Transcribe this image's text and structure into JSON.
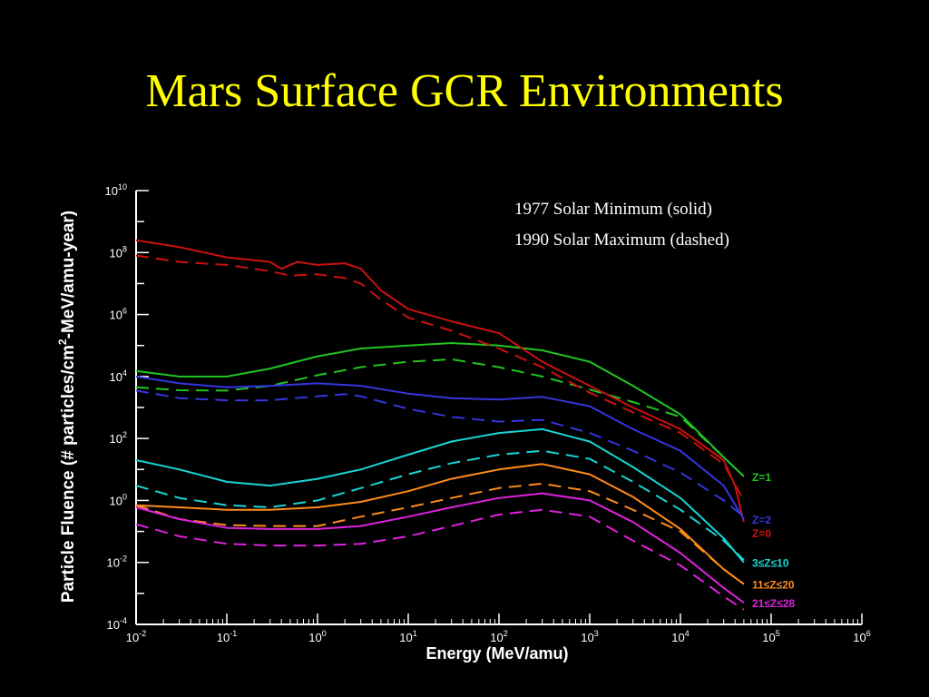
{
  "slide": {
    "title": "Mars Surface GCR Environments"
  },
  "chart_data": {
    "type": "line",
    "xlabel": "Energy (MeV/amu)",
    "ylabel": "Particle Fluence (# particles/cm²-MeV/amu-year)",
    "ylabel_parts": {
      "before": "Particle Fluence (# particles/cm",
      "sup": "2",
      "after": "-MeV/amu-year)"
    },
    "x_scale": "log",
    "y_scale": "log",
    "xlim": [
      0.01,
      1000000
    ],
    "ylim": [
      0.0001,
      10000000000
    ],
    "x_ticks": [
      {
        "value": 0.01,
        "base": "10",
        "exp": "-2"
      },
      {
        "value": 0.1,
        "base": "10",
        "exp": "-1"
      },
      {
        "value": 1,
        "base": "10",
        "exp": "0"
      },
      {
        "value": 10,
        "base": "10",
        "exp": "1"
      },
      {
        "value": 100,
        "base": "10",
        "exp": "2"
      },
      {
        "value": 1000,
        "base": "10",
        "exp": "3"
      },
      {
        "value": 10000,
        "base": "10",
        "exp": "4"
      },
      {
        "value": 100000,
        "base": "10",
        "exp": "5"
      },
      {
        "value": 1000000,
        "base": "10",
        "exp": "6"
      }
    ],
    "y_ticks": [
      {
        "value": 0.0001,
        "base": "10",
        "exp": "-4"
      },
      {
        "value": 0.01,
        "base": "10",
        "exp": "-2"
      },
      {
        "value": 1,
        "base": "10",
        "exp": "0"
      },
      {
        "value": 100,
        "base": "10",
        "exp": "2"
      },
      {
        "value": 10000,
        "base": "10",
        "exp": "4"
      },
      {
        "value": 1000000,
        "base": "10",
        "exp": "6"
      },
      {
        "value": 100000000,
        "base": "10",
        "exp": "8"
      },
      {
        "value": 10000000000,
        "base": "10",
        "exp": "10"
      }
    ],
    "grid": false,
    "legend_lines": [
      "1977 Solar Minimum (solid)",
      "1990 Solar Maximum (dashed)"
    ],
    "legend_position": "top-right",
    "series": [
      {
        "name": "Z=1",
        "color": "#22c422",
        "solid": [
          [
            0.01,
            15000
          ],
          [
            0.03,
            10000
          ],
          [
            0.1,
            10000
          ],
          [
            0.3,
            18000
          ],
          [
            1,
            45000
          ],
          [
            3,
            80000
          ],
          [
            10,
            100000
          ],
          [
            30,
            120000
          ],
          [
            100,
            100000
          ],
          [
            300,
            70000
          ],
          [
            1000,
            30000
          ],
          [
            3000,
            5000
          ],
          [
            10000,
            600
          ],
          [
            30000,
            25
          ],
          [
            50000,
            6
          ]
        ],
        "dashed": [
          [
            0.01,
            4500
          ],
          [
            0.03,
            3600
          ],
          [
            0.1,
            3500
          ],
          [
            0.3,
            5000
          ],
          [
            1,
            11000
          ],
          [
            3,
            20000
          ],
          [
            10,
            30000
          ],
          [
            30,
            36000
          ],
          [
            100,
            20000
          ],
          [
            300,
            10000
          ],
          [
            1000,
            3800
          ],
          [
            3000,
            1500
          ],
          [
            10000,
            500
          ],
          [
            30000,
            25
          ],
          [
            50000,
            6
          ]
        ]
      },
      {
        "name": "Z=0",
        "color": "#cc1111",
        "solid": [
          [
            0.01,
            250000000
          ],
          [
            0.03,
            150000000
          ],
          [
            0.1,
            70000000
          ],
          [
            0.3,
            50000000
          ],
          [
            0.4,
            30000000
          ],
          [
            0.6,
            50000000
          ],
          [
            1,
            40000000
          ],
          [
            2,
            45000000
          ],
          [
            3,
            30000000
          ],
          [
            5,
            6000000
          ],
          [
            10,
            1500000
          ],
          [
            30,
            600000
          ],
          [
            100,
            250000
          ],
          [
            300,
            30000
          ],
          [
            1000,
            5000
          ],
          [
            3000,
            1000
          ],
          [
            10000,
            200
          ],
          [
            30000,
            20
          ],
          [
            40000,
            3
          ],
          [
            50000,
            0.2
          ]
        ],
        "dashed": [
          [
            0.01,
            80000000
          ],
          [
            0.03,
            50000000
          ],
          [
            0.1,
            40000000
          ],
          [
            0.3,
            25000000
          ],
          [
            0.5,
            18000000
          ],
          [
            1,
            20000000
          ],
          [
            2,
            15000000
          ],
          [
            3,
            10000000
          ],
          [
            5,
            3000000
          ],
          [
            10,
            800000
          ],
          [
            30,
            300000
          ],
          [
            100,
            80000
          ],
          [
            300,
            20000
          ],
          [
            1000,
            3000
          ],
          [
            3000,
            700
          ],
          [
            10000,
            150
          ],
          [
            30000,
            15
          ],
          [
            50000,
            1
          ]
        ]
      },
      {
        "name": "Z=2",
        "color": "#3535e0",
        "solid": [
          [
            0.01,
            10000
          ],
          [
            0.03,
            6000
          ],
          [
            0.1,
            4500
          ],
          [
            0.3,
            5000
          ],
          [
            1,
            6000
          ],
          [
            3,
            5000
          ],
          [
            10,
            2800
          ],
          [
            30,
            2000
          ],
          [
            100,
            1800
          ],
          [
            300,
            2200
          ],
          [
            1000,
            1100
          ],
          [
            3000,
            200
          ],
          [
            10000,
            40
          ],
          [
            30000,
            3
          ],
          [
            50000,
            0.25
          ]
        ],
        "dashed": [
          [
            0.01,
            3500
          ],
          [
            0.03,
            2000
          ],
          [
            0.1,
            1700
          ],
          [
            0.3,
            1700
          ],
          [
            1,
            2300
          ],
          [
            2,
            2700
          ],
          [
            3,
            2300
          ],
          [
            10,
            900
          ],
          [
            30,
            500
          ],
          [
            100,
            350
          ],
          [
            300,
            400
          ],
          [
            1000,
            150
          ],
          [
            3000,
            40
          ],
          [
            10000,
            8
          ],
          [
            30000,
            1
          ],
          [
            50000,
            0.3
          ]
        ]
      },
      {
        "name": "3≤Z≤10",
        "color": "#18d4d4",
        "solid": [
          [
            0.01,
            20
          ],
          [
            0.03,
            10
          ],
          [
            0.1,
            4
          ],
          [
            0.3,
            3
          ],
          [
            1,
            5
          ],
          [
            3,
            10
          ],
          [
            10,
            30
          ],
          [
            30,
            80
          ],
          [
            100,
            150
          ],
          [
            300,
            200
          ],
          [
            1000,
            80
          ],
          [
            3000,
            12
          ],
          [
            10000,
            1.2
          ],
          [
            30000,
            0.06
          ],
          [
            50000,
            0.01
          ]
        ],
        "dashed": [
          [
            0.01,
            3
          ],
          [
            0.03,
            1.2
          ],
          [
            0.1,
            0.7
          ],
          [
            0.3,
            0.6
          ],
          [
            1,
            1
          ],
          [
            3,
            2.5
          ],
          [
            10,
            7
          ],
          [
            30,
            16
          ],
          [
            100,
            30
          ],
          [
            300,
            40
          ],
          [
            1000,
            22
          ],
          [
            3000,
            4
          ],
          [
            10000,
            0.5
          ],
          [
            30000,
            0.05
          ],
          [
            50000,
            0.012
          ]
        ]
      },
      {
        "name": "11≤Z≤20",
        "color": "#ff8c1a",
        "solid": [
          [
            0.01,
            0.7
          ],
          [
            0.03,
            0.6
          ],
          [
            0.1,
            0.5
          ],
          [
            0.3,
            0.5
          ],
          [
            1,
            0.6
          ],
          [
            3,
            0.9
          ],
          [
            10,
            2
          ],
          [
            30,
            5
          ],
          [
            100,
            10
          ],
          [
            300,
            15
          ],
          [
            1000,
            7
          ],
          [
            3000,
            1.3
          ],
          [
            10000,
            0.12
          ],
          [
            30000,
            0.006
          ],
          [
            50000,
            0.002
          ]
        ],
        "dashed": [
          [
            0.01,
            0.7
          ],
          [
            0.03,
            0.25
          ],
          [
            0.1,
            0.16
          ],
          [
            0.3,
            0.15
          ],
          [
            1,
            0.15
          ],
          [
            3,
            0.3
          ],
          [
            10,
            0.6
          ],
          [
            30,
            1.2
          ],
          [
            100,
            2.5
          ],
          [
            300,
            3.5
          ],
          [
            1000,
            2
          ],
          [
            3000,
            0.5
          ],
          [
            10000,
            0.1
          ],
          [
            30000,
            0.006
          ],
          [
            50000,
            0.002
          ]
        ]
      },
      {
        "name": "21≤Z≤28",
        "color": "#dd22dd",
        "solid": [
          [
            0.01,
            0.6
          ],
          [
            0.03,
            0.25
          ],
          [
            0.1,
            0.13
          ],
          [
            0.3,
            0.12
          ],
          [
            1,
            0.12
          ],
          [
            3,
            0.15
          ],
          [
            10,
            0.3
          ],
          [
            30,
            0.6
          ],
          [
            100,
            1.2
          ],
          [
            300,
            1.7
          ],
          [
            1000,
            1
          ],
          [
            3000,
            0.2
          ],
          [
            10000,
            0.02
          ],
          [
            30000,
            0.0015
          ],
          [
            50000,
            0.0005
          ]
        ],
        "dashed": [
          [
            0.01,
            0.17
          ],
          [
            0.03,
            0.07
          ],
          [
            0.1,
            0.04
          ],
          [
            0.3,
            0.035
          ],
          [
            1,
            0.035
          ],
          [
            3,
            0.04
          ],
          [
            10,
            0.07
          ],
          [
            30,
            0.15
          ],
          [
            100,
            0.35
          ],
          [
            300,
            0.5
          ],
          [
            1000,
            0.3
          ],
          [
            3000,
            0.05
          ],
          [
            10000,
            0.008
          ],
          [
            30000,
            0.0008
          ],
          [
            50000,
            0.0003
          ]
        ]
      }
    ]
  }
}
